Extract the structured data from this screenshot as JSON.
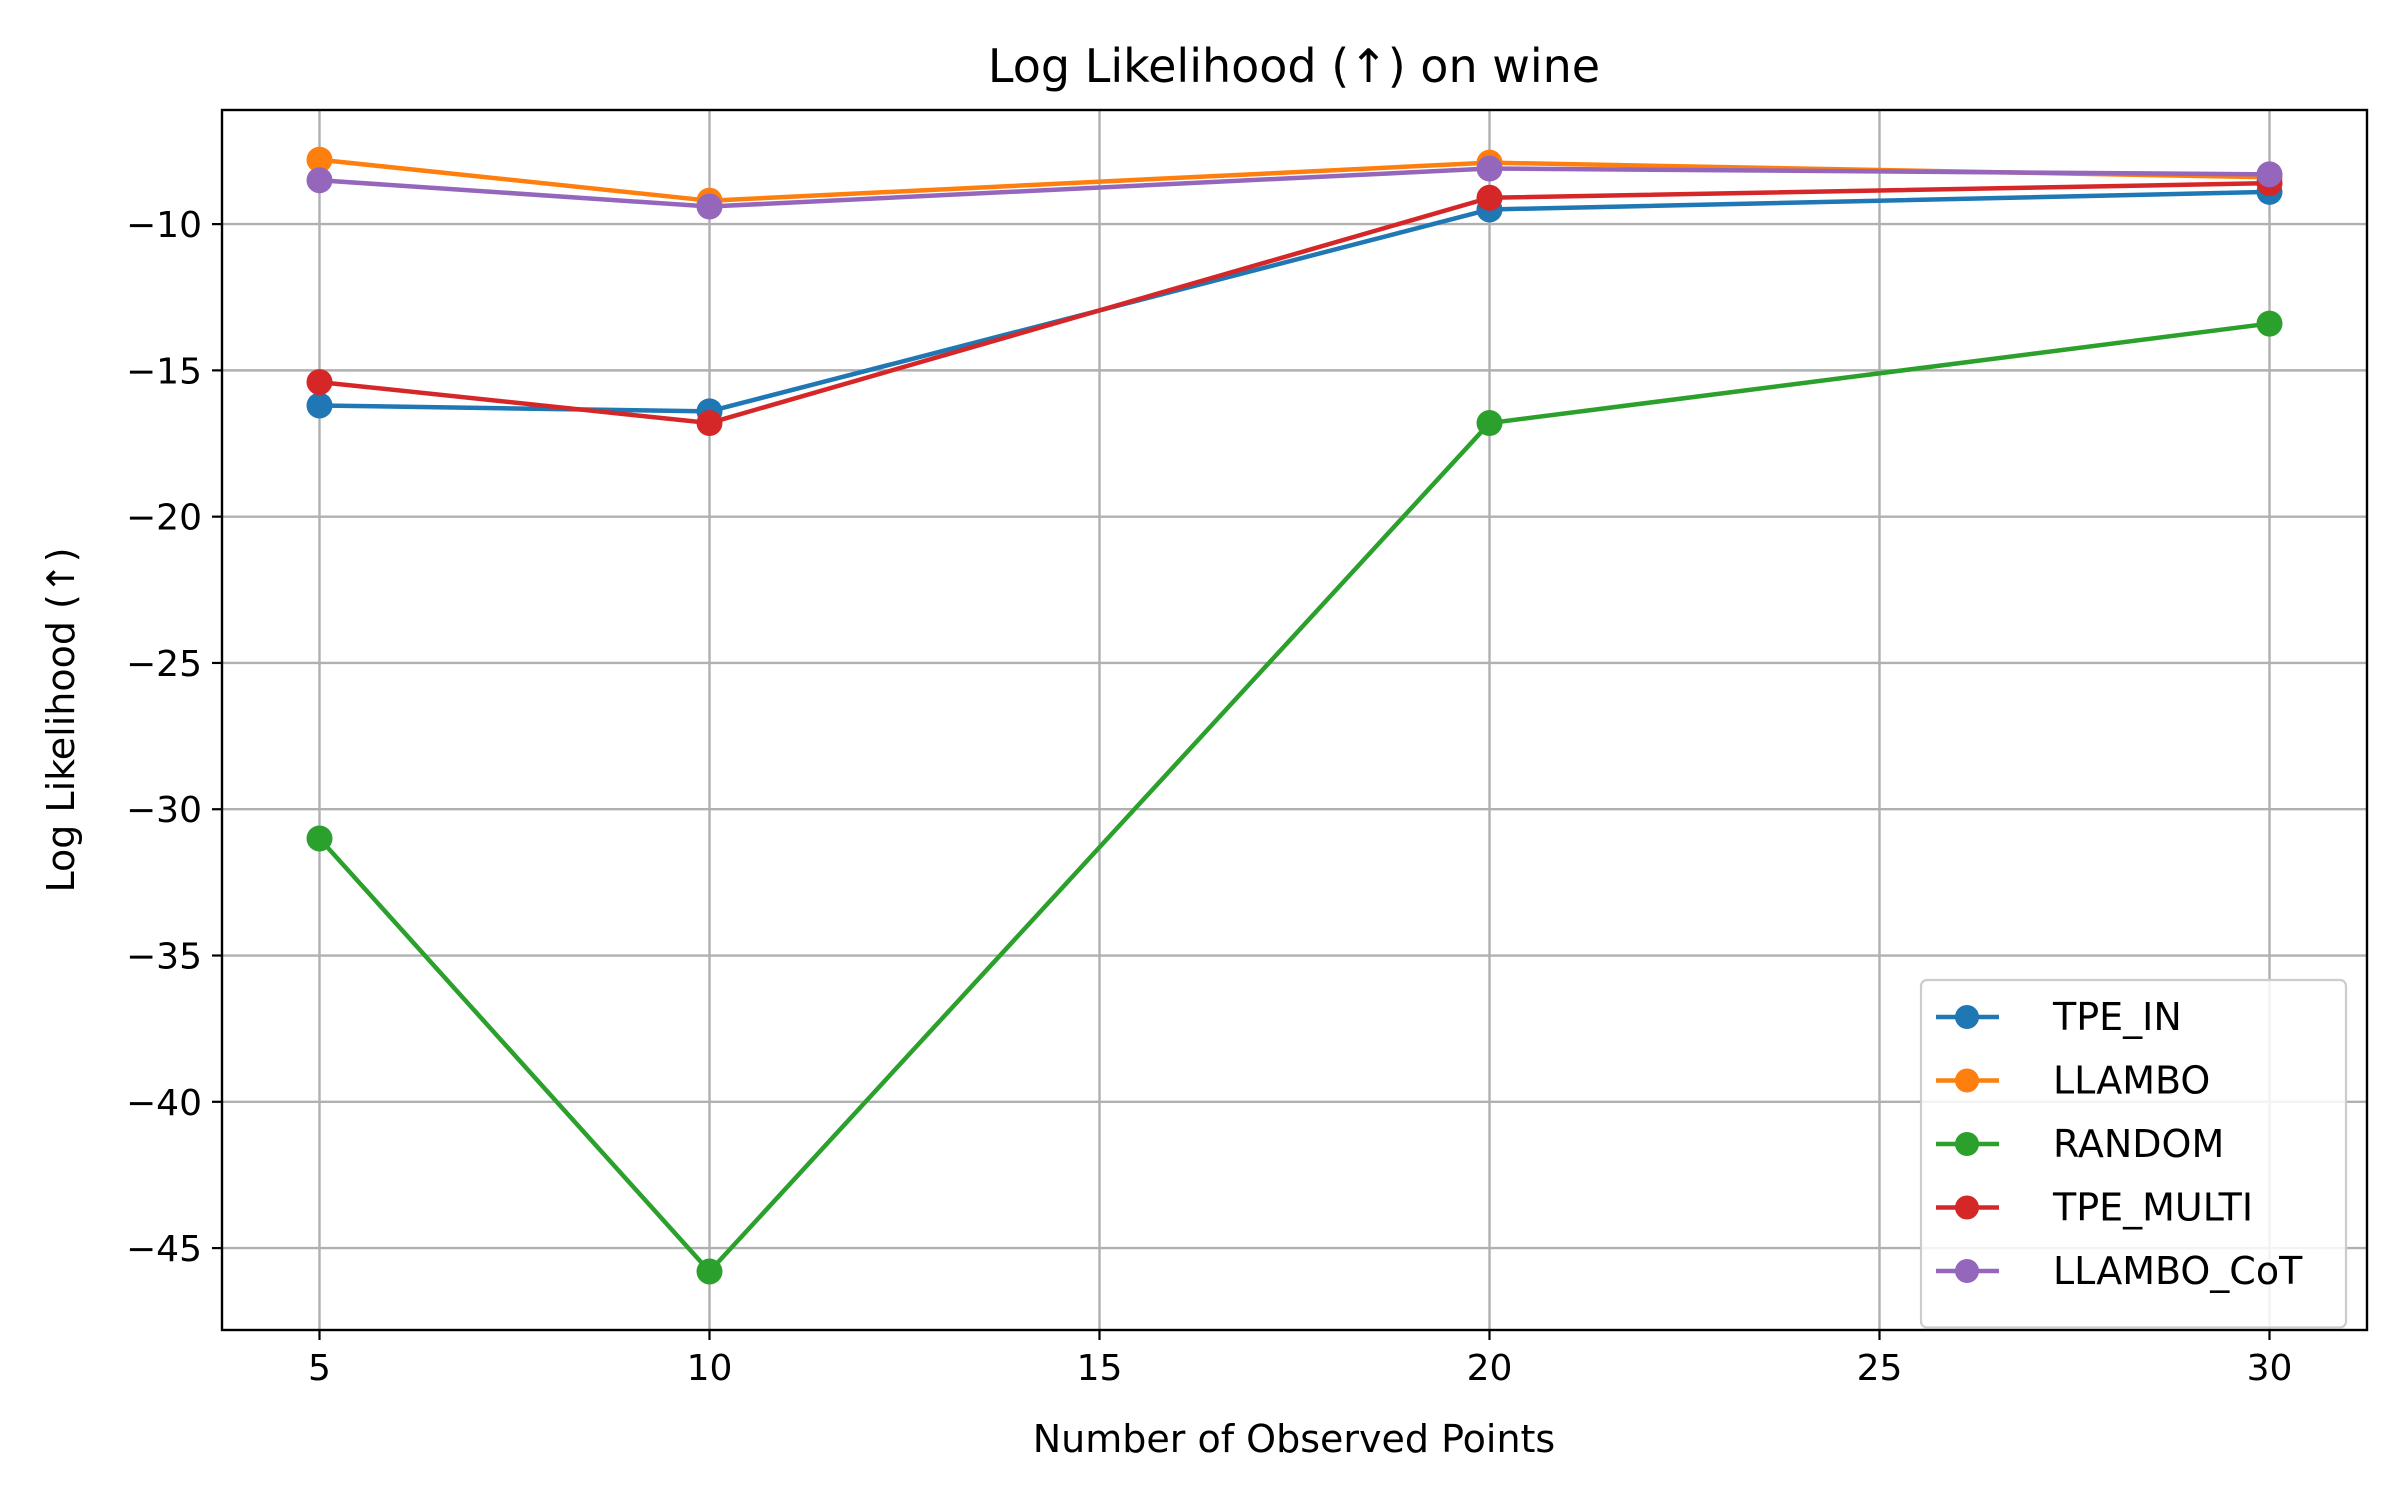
{
  "chart_data": {
    "type": "line",
    "title": "Log Likelihood (↑) on wine",
    "xlabel": "Number of Observed Points",
    "ylabel": "Log Likelihood (↑)",
    "x": [
      5,
      10,
      20,
      30
    ],
    "xlim": [
      3.75,
      31.25
    ],
    "ylim": [
      -47.8,
      -6.1
    ],
    "xticks": [
      5,
      10,
      15,
      20,
      25,
      30
    ],
    "yticks": [
      -45,
      -40,
      -35,
      -30,
      -25,
      -20,
      -15,
      -10
    ],
    "grid": true,
    "legend_position": "lower right",
    "marker": "circle",
    "series": [
      {
        "name": "TPE_IN",
        "color": "#1f77b4",
        "values": [
          -16.2,
          -16.4,
          -9.5,
          -8.9
        ]
      },
      {
        "name": "LLAMBO",
        "color": "#ff7f0e",
        "values": [
          -7.8,
          -9.2,
          -7.9,
          -8.4
        ]
      },
      {
        "name": "RANDOM",
        "color": "#2ca02c",
        "values": [
          -31.0,
          -45.8,
          -16.8,
          -13.4
        ]
      },
      {
        "name": "TPE_MULTI",
        "color": "#d62728",
        "values": [
          -15.4,
          -16.8,
          -9.1,
          -8.6
        ]
      },
      {
        "name": "LLAMBO_CoT",
        "color": "#9467bd",
        "values": [
          -8.5,
          -9.4,
          -8.1,
          -8.3
        ]
      }
    ]
  }
}
